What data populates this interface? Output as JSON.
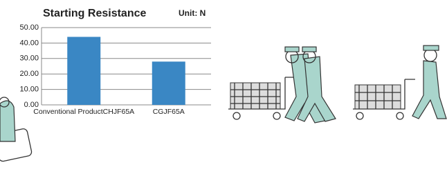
{
  "chart_data": {
    "type": "bar",
    "title": "Starting Resistance",
    "unit_label": "Unit: N",
    "categories": [
      "Conventional ProductCHJF65A",
      "CGJF65A"
    ],
    "values": [
      44,
      28
    ],
    "color": "#3a87c4",
    "ylim": [
      0,
      50
    ],
    "yticks": [
      {
        "value": 0,
        "label": "0.00"
      },
      {
        "value": 10,
        "label": "10.00"
      },
      {
        "value": 20,
        "label": "20.00"
      },
      {
        "value": 30,
        "label": "30.00"
      },
      {
        "value": 40,
        "label": "40.00"
      },
      {
        "value": 50,
        "label": "50.00"
      }
    ],
    "grid": true
  }
}
